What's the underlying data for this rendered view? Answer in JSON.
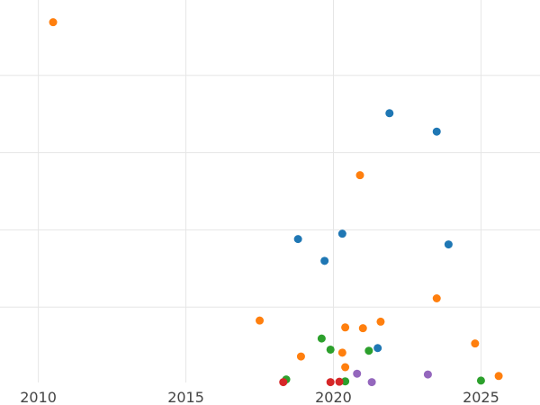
{
  "chart_data": {
    "type": "scatter",
    "title": "",
    "xlabel": "",
    "ylabel": "",
    "xlim": [
      2008.7,
      2027.0
    ],
    "ylim": [
      0,
      100
    ],
    "x_ticks": [
      2010,
      2015,
      2020,
      2025
    ],
    "x_tick_labels": [
      "2010",
      "2015",
      "2020",
      "2025"
    ],
    "y_gridlines": [
      19.7,
      39.9,
      60.1,
      80.3,
      100.5
    ],
    "grid": true,
    "legend": "none",
    "series": [
      {
        "color": "#1f77b4",
        "points": [
          {
            "x": 2021.9,
            "y": 70.4
          },
          {
            "x": 2023.5,
            "y": 65.6
          },
          {
            "x": 2020.3,
            "y": 38.9
          },
          {
            "x": 2018.8,
            "y": 37.5
          },
          {
            "x": 2023.9,
            "y": 36.1
          },
          {
            "x": 2019.7,
            "y": 31.8
          },
          {
            "x": 2021.5,
            "y": 9.0
          }
        ]
      },
      {
        "color": "#ff7f0e",
        "points": [
          {
            "x": 2010.5,
            "y": 94.2
          },
          {
            "x": 2020.9,
            "y": 54.2
          },
          {
            "x": 2023.5,
            "y": 22.0
          },
          {
            "x": 2017.5,
            "y": 16.2
          },
          {
            "x": 2021.6,
            "y": 15.9
          },
          {
            "x": 2020.4,
            "y": 14.4
          },
          {
            "x": 2021.0,
            "y": 14.2
          },
          {
            "x": 2024.8,
            "y": 10.2
          },
          {
            "x": 2020.3,
            "y": 7.8
          },
          {
            "x": 2018.9,
            "y": 6.8
          },
          {
            "x": 2020.4,
            "y": 4.0
          },
          {
            "x": 2025.6,
            "y": 1.7
          }
        ]
      },
      {
        "color": "#2ca02c",
        "points": [
          {
            "x": 2019.6,
            "y": 11.5
          },
          {
            "x": 2019.9,
            "y": 8.6
          },
          {
            "x": 2021.2,
            "y": 8.3
          },
          {
            "x": 2018.4,
            "y": 0.8
          },
          {
            "x": 2020.4,
            "y": 0.3
          },
          {
            "x": 2025.0,
            "y": 0.5
          }
        ]
      },
      {
        "color": "#d62728",
        "points": [
          {
            "x": 2018.3,
            "y": 0.1
          },
          {
            "x": 2019.9,
            "y": 0.1
          },
          {
            "x": 2020.2,
            "y": 0.2
          }
        ]
      },
      {
        "color": "#9467bd",
        "points": [
          {
            "x": 2020.8,
            "y": 2.3
          },
          {
            "x": 2023.2,
            "y": 2.1
          },
          {
            "x": 2021.3,
            "y": 0.1
          }
        ]
      }
    ]
  }
}
